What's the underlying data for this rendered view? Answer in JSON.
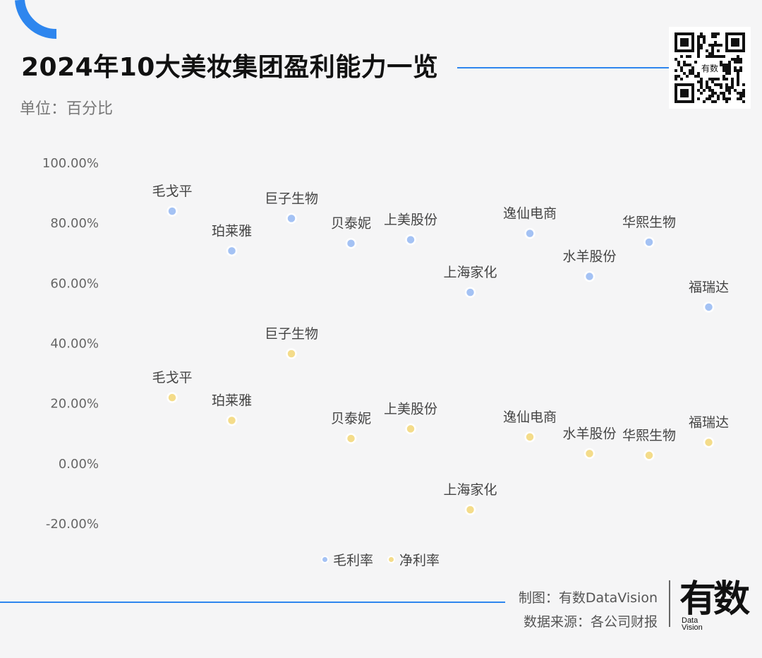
{
  "colors": {
    "accent": "#2e86ee",
    "gross": "#a4c2f4",
    "net": "#f4dc8a",
    "label": "#444444",
    "tick": "#666666"
  },
  "header": {
    "title": "2024年10大美妆集团盈利能力一览",
    "unit": "单位：百分比"
  },
  "legend": {
    "gross": "毛利率",
    "net": "净利率"
  },
  "footer": {
    "maker": "制图：有数DataVision",
    "source": "数据来源：各公司财报",
    "brand_cn": "有数",
    "brand_en1": "Data",
    "brand_en2": "Vision"
  },
  "qr": {
    "center_text": "有数"
  },
  "chart_data": {
    "type": "scatter",
    "categories": [
      "毛戈平",
      "珀莱雅",
      "巨子生物",
      "贝泰妮",
      "上美股份",
      "上海家化",
      "逸仙电商",
      "水羊股份",
      "华熙生物",
      "福瑞达"
    ],
    "series": [
      {
        "name": "毛利率",
        "values": [
          84.0,
          70.8,
          81.6,
          73.3,
          74.5,
          57.0,
          76.6,
          62.3,
          73.7,
          52.1
        ]
      },
      {
        "name": "净利率",
        "values": [
          22.0,
          14.4,
          36.6,
          8.4,
          11.6,
          -15.3,
          8.9,
          3.4,
          2.8,
          7.1
        ]
      }
    ],
    "yticks": [
      "100.00%",
      "80.00%",
      "60.00%",
      "40.00%",
      "20.00%",
      "0.00%",
      "-20.00%"
    ],
    "ylim": [
      -20,
      100
    ],
    "legend_position": "bottom",
    "grid": false
  }
}
